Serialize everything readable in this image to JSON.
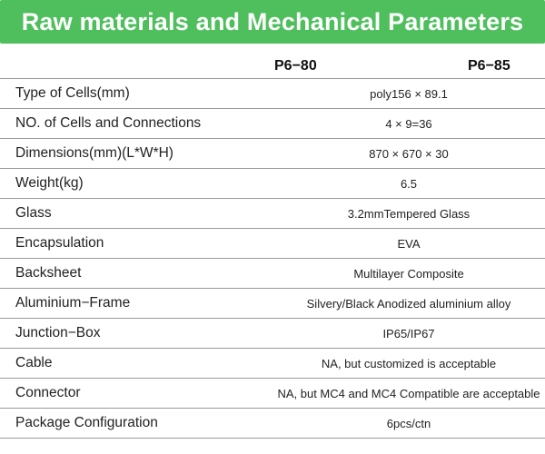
{
  "title": "Raw materials and Mechanical Parameters",
  "columns": [
    "P6−80",
    "P6−85"
  ],
  "rows": [
    {
      "label": "Type of Cells(mm)",
      "value": "poly156 × 89.1"
    },
    {
      "label": "NO. of Cells and Connections",
      "value": "4 × 9=36"
    },
    {
      "label": "Dimensions(mm)(L*W*H)",
      "value": "870 × 670 × 30"
    },
    {
      "label": "Weight(kg)",
      "value": "6.5"
    },
    {
      "label": "Glass",
      "value": "3.2mmTempered Glass"
    },
    {
      "label": "Encapsulation",
      "value": "EVA"
    },
    {
      "label": "Backsheet",
      "value": "Multilayer Composite"
    },
    {
      "label": "Aluminium−Frame",
      "value": "Silvery/Black Anodized aluminium alloy"
    },
    {
      "label": "Junction−Box",
      "value": "IP65/IP67"
    },
    {
      "label": "Cable",
      "value": "NA, but customized is acceptable"
    },
    {
      "label": "Connector",
      "value": "NA, but MC4 and MC4 Compatible are acceptable"
    },
    {
      "label": "Package Configuration",
      "value": "6pcs/ctn"
    }
  ],
  "colors": {
    "banner": "#4fbf5d",
    "banner_text": "#ffffff",
    "rule": "#9a9a9a"
  }
}
